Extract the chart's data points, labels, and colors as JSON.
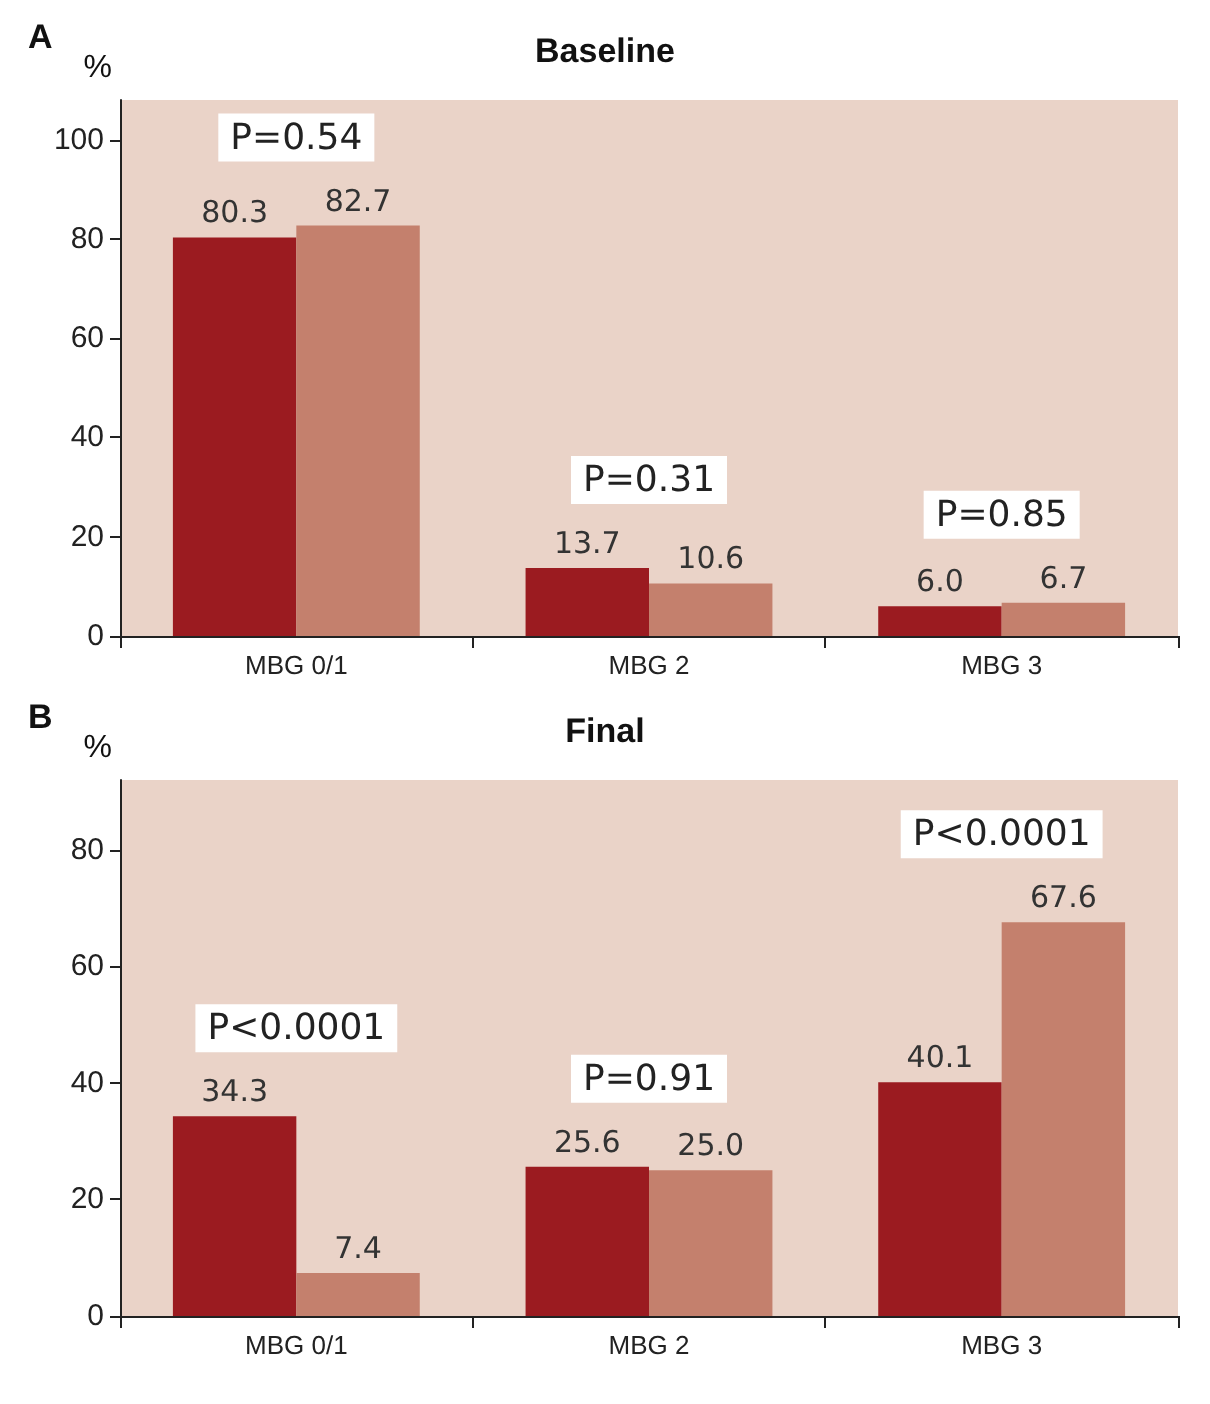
{
  "chart_data": [
    {
      "type": "bar",
      "title": "Baseline",
      "ylabel": "%",
      "categories": [
        "MBG 0/1",
        "MBG 2",
        "MBG 3"
      ],
      "series": [
        {
          "color": "#9b1b20",
          "values": [
            80.3,
            13.7,
            6.0
          ],
          "value_labels": [
            "80.3",
            "13.7",
            "6.0"
          ]
        },
        {
          "color": "#c4806d",
          "values": [
            82.7,
            10.6,
            6.7
          ],
          "value_labels": [
            "82.7",
            "10.6",
            "6.7"
          ]
        }
      ],
      "ylim": [
        0,
        108
      ],
      "yticks": [
        0,
        20,
        40,
        60,
        80,
        100
      ],
      "grid": false,
      "annotations": [
        "A",
        "P=0.54",
        "P=0.31",
        "P=0.85"
      ]
    },
    {
      "type": "bar",
      "title": "Final",
      "ylabel": "%",
      "categories": [
        "MBG 0/1",
        "MBG 2",
        "MBG 3"
      ],
      "series": [
        {
          "color": "#9b1b20",
          "values": [
            34.3,
            25.6,
            40.1
          ],
          "value_labels": [
            "34.3",
            "25.6",
            "40.1"
          ]
        },
        {
          "color": "#c4806d",
          "values": [
            7.4,
            25.0,
            67.6
          ],
          "value_labels": [
            "7.4",
            "25.0",
            "67.6"
          ]
        }
      ],
      "ylim": [
        0,
        92
      ],
      "yticks": [
        0,
        20,
        40,
        60,
        80
      ],
      "grid": false,
      "annotations": [
        "B",
        "P<0.0001",
        "P=0.91",
        "P<0.0001"
      ]
    }
  ]
}
